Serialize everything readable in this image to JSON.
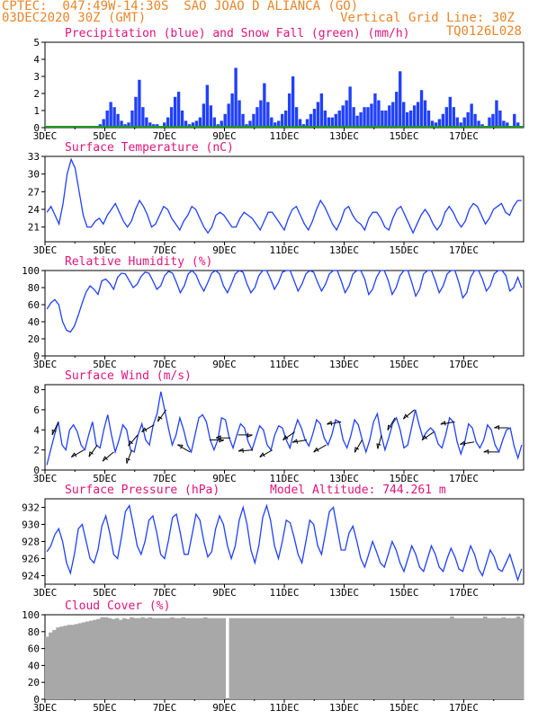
{
  "header": {
    "line1": "CPTEC:  047:49W-14:30S  SAO JOAO D ALIANCA (GO)",
    "line2": "03DEC2020 30Z (GMT)",
    "vertical_grid": "Vertical Grid Line: 30Z",
    "code": "TQ0126L028"
  },
  "colors": {
    "series": "#2040ff",
    "snow": "#1f9a1f",
    "cloud": "#a8a8a8",
    "title": "#e0147a",
    "header": "#e8862a"
  },
  "chart_data": [
    {
      "type": "bar",
      "title": "Precipitation (blue) and Snow Fall (green) (mm/h)",
      "ylim": [
        0,
        5
      ],
      "yticks": [
        0,
        1,
        2,
        3,
        4,
        5
      ],
      "xticks": [
        "3DEC",
        "5DEC",
        "7DEC",
        "9DEC",
        "11DEC",
        "13DEC",
        "15DEC",
        "17DEC"
      ],
      "x_range_days": [
        3,
        19
      ],
      "series": [
        {
          "name": "Precipitation",
          "values": [
            0,
            0,
            0,
            0,
            0,
            0,
            0,
            0,
            0,
            0,
            0,
            0,
            0,
            0,
            0.1,
            0.2,
            0.5,
            1,
            1.5,
            1.2,
            0.8,
            0.4,
            0.2,
            0.3,
            1.0,
            1.8,
            2.8,
            1.2,
            0.6,
            0.3,
            0.2,
            0.2,
            0.1,
            0.3,
            0.6,
            1.2,
            1.8,
            2.1,
            1.0,
            0.4,
            0.2,
            0.3,
            0.4,
            0.6,
            1.4,
            2.5,
            1.3,
            0.6,
            0.2,
            0.4,
            0.8,
            1.4,
            2.0,
            3.5,
            1.6,
            0.8,
            0.2,
            0.4,
            0.8,
            1.2,
            1.6,
            2.6,
            1.5,
            0.6,
            0.3,
            0.4,
            0.8,
            1.0,
            2.0,
            3.0,
            1.2,
            0.5,
            0.2,
            0.5,
            0.8,
            1.1,
            1.5,
            2.0,
            1.0,
            0.6,
            0.6,
            0.8,
            1.0,
            1.3,
            1.6,
            2.4,
            1.2,
            0.7,
            0.9,
            1.2,
            1.2,
            1.4,
            2.0,
            1.6,
            1.0,
            1.0,
            1.3,
            1.5,
            2.1,
            3.3,
            1.5,
            0.9,
            1.0,
            1.3,
            1.5,
            2.2,
            1.6,
            1.0,
            0.4,
            0.3,
            0.5,
            0.8,
            1.2,
            1.8,
            1.2,
            0.6,
            0.3,
            0.6,
            0.9,
            1.4,
            0.8,
            0.4,
            0.2,
            0.1,
            0.6,
            0.8,
            1.6,
            1.0,
            0.4,
            0.3,
            0.1,
            0.8,
            0.3,
            0.1
          ]
        },
        {
          "name": "Snow Fall",
          "values": [
            0,
            0,
            0,
            0,
            0,
            0,
            0,
            0,
            0,
            0
          ]
        }
      ]
    },
    {
      "type": "line",
      "title": "Surface Temperature (nC)",
      "ylim": [
        18.5,
        33
      ],
      "yticks": [
        21,
        24,
        27,
        30,
        33
      ],
      "xticks": [
        "3DEC",
        "5DEC",
        "7DEC",
        "9DEC",
        "11DEC",
        "13DEC",
        "15DEC",
        "17DEC"
      ],
      "x_range_days": [
        3,
        19
      ],
      "series": [
        {
          "name": "Temperature",
          "values": [
            23.5,
            24.5,
            23.0,
            21.5,
            25.0,
            30.0,
            32.5,
            31.0,
            27.0,
            23.0,
            21.0,
            21.0,
            22.0,
            22.5,
            21.5,
            23.0,
            24.0,
            25.0,
            23.5,
            22.0,
            21.0,
            22.0,
            24.0,
            25.5,
            24.5,
            23.0,
            21.0,
            21.5,
            23.0,
            24.5,
            24.0,
            22.5,
            21.5,
            20.5,
            22.0,
            23.0,
            24.5,
            24.0,
            22.5,
            21.0,
            20.0,
            21.0,
            23.0,
            23.5,
            23.0,
            22.0,
            21.0,
            21.0,
            22.5,
            23.5,
            23.0,
            22.5,
            21.5,
            20.5,
            22.0,
            23.5,
            23.5,
            22.5,
            21.5,
            20.5,
            22.5,
            24.0,
            24.5,
            23.0,
            21.5,
            20.5,
            22.0,
            24.0,
            25.5,
            24.5,
            23.0,
            21.5,
            20.5,
            22.0,
            24.0,
            24.5,
            23.0,
            22.0,
            21.5,
            20.5,
            22.5,
            23.5,
            23.5,
            22.5,
            21.0,
            20.5,
            22.5,
            24.0,
            24.5,
            23.0,
            21.5,
            20.0,
            21.5,
            23.0,
            24.0,
            23.0,
            21.5,
            20.5,
            21.5,
            23.5,
            24.5,
            23.5,
            22.0,
            21.0,
            22.0,
            24.0,
            25.0,
            24.5,
            23.0,
            21.5,
            22.5,
            24.0,
            24.5,
            25.0,
            23.5,
            23.0,
            24.5,
            25.5,
            25.5
          ]
        }
      ]
    },
    {
      "type": "line",
      "title": "Relative Humidity (%)",
      "ylim": [
        0,
        100
      ],
      "yticks": [
        0,
        20,
        40,
        60,
        80,
        100
      ],
      "xticks": [
        "3DEC",
        "5DEC",
        "7DEC",
        "9DEC",
        "11DEC",
        "13DEC",
        "15DEC",
        "17DEC"
      ],
      "x_range_days": [
        3,
        19
      ],
      "series": [
        {
          "name": "Relative Humidity",
          "values": [
            55,
            62,
            66,
            60,
            40,
            30,
            28,
            35,
            48,
            62,
            75,
            82,
            78,
            72,
            88,
            90,
            85,
            78,
            92,
            97,
            96,
            88,
            80,
            84,
            93,
            98,
            97,
            88,
            78,
            82,
            94,
            99,
            97,
            86,
            74,
            82,
            96,
            100,
            95,
            84,
            76,
            86,
            97,
            100,
            96,
            82,
            74,
            84,
            96,
            100,
            98,
            84,
            74,
            80,
            94,
            100,
            100,
            90,
            78,
            86,
            98,
            100,
            100,
            88,
            76,
            84,
            96,
            100,
            98,
            86,
            76,
            84,
            96,
            100,
            100,
            88,
            74,
            82,
            96,
            100,
            100,
            90,
            72,
            78,
            92,
            100,
            100,
            88,
            72,
            80,
            94,
            100,
            100,
            86,
            70,
            78,
            96,
            100,
            100,
            88,
            74,
            82,
            96,
            100,
            100,
            86,
            68,
            74,
            92,
            100,
            100,
            90,
            76,
            82,
            96,
            100,
            100,
            94,
            76,
            80,
            92,
            80
          ]
        }
      ]
    },
    {
      "type": "line",
      "title": "Surface Wind (m/s)",
      "ylim": [
        0,
        8.5
      ],
      "yticks": [
        0,
        2,
        4,
        6,
        8
      ],
      "xticks": [
        "3DEC",
        "5DEC",
        "7DEC",
        "9DEC",
        "11DEC",
        "13DEC",
        "15DEC",
        "17DEC"
      ],
      "x_range_days": [
        3,
        19
      ],
      "series": [
        {
          "name": "Wind Speed",
          "values": [
            0.5,
            2.0,
            3.5,
            4.8,
            2.5,
            2.0,
            4.0,
            4.5,
            3.8,
            2.5,
            2.0,
            3.5,
            4.8,
            2.5,
            2.2,
            4.0,
            5.5,
            3.5,
            1.8,
            3.0,
            4.5,
            4.0,
            2.0,
            1.8,
            3.5,
            4.6,
            3.0,
            2.5,
            4.5,
            5.6,
            7.8,
            6.0,
            4.2,
            2.5,
            3.5,
            5.2,
            4.0,
            2.5,
            1.8,
            3.5,
            5.2,
            5.5,
            4.8,
            3.0,
            2.0,
            3.0,
            5.2,
            5.0,
            3.2,
            2.2,
            3.5,
            4.6,
            4.2,
            2.8,
            2.0,
            3.2,
            4.4,
            4.0,
            2.5,
            2.0,
            3.5,
            4.4,
            4.2,
            3.0,
            2.2,
            3.8,
            5.0,
            4.2,
            3.0,
            2.4,
            3.6,
            5.0,
            4.6,
            3.2,
            2.5,
            3.5,
            5.0,
            4.8,
            3.0,
            2.2,
            3.4,
            5.0,
            4.5,
            3.0,
            1.8,
            3.0,
            4.8,
            5.6,
            3.5,
            2.0,
            3.2,
            4.6,
            5.2,
            4.0,
            2.2,
            2.5,
            4.2,
            6.0,
            4.5,
            3.2,
            3.8,
            4.2,
            3.8,
            2.6,
            2.2,
            3.5,
            5.2,
            4.8,
            2.8,
            1.6,
            2.8,
            4.6,
            4.2,
            2.8,
            2.2,
            3.0,
            4.5,
            4.0,
            2.5,
            1.8,
            3.0,
            4.0,
            4.2,
            2.4,
            1.2,
            2.5
          ]
        }
      ],
      "arrows": [
        {
          "day": 3.45,
          "dir": 205
        },
        {
          "day": 4.3,
          "dir": 240
        },
        {
          "day": 4.75,
          "dir": 215
        },
        {
          "day": 5.3,
          "dir": 230
        },
        {
          "day": 5.9,
          "dir": 200
        },
        {
          "day": 6.1,
          "dir": 220
        },
        {
          "day": 6.65,
          "dir": 240
        },
        {
          "day": 7.05,
          "dir": 215
        },
        {
          "day": 7.85,
          "dir": 300
        },
        {
          "day": 8.5,
          "dir": 90
        },
        {
          "day": 9.2,
          "dir": 270
        },
        {
          "day": 9.45,
          "dir": 90
        },
        {
          "day": 9.95,
          "dir": 265
        },
        {
          "day": 10.6,
          "dir": 240
        },
        {
          "day": 11.35,
          "dir": 235
        },
        {
          "day": 11.75,
          "dir": 260
        },
        {
          "day": 12.4,
          "dir": 240
        },
        {
          "day": 12.9,
          "dir": 260
        },
        {
          "day": 13.6,
          "dir": 210
        },
        {
          "day": 14.25,
          "dir": 195
        },
        {
          "day": 14.7,
          "dir": 210
        },
        {
          "day": 15.35,
          "dir": 230
        },
        {
          "day": 16.0,
          "dir": 235
        },
        {
          "day": 16.7,
          "dir": 260
        },
        {
          "day": 17.35,
          "dir": 260
        },
        {
          "day": 18.15,
          "dir": 270
        },
        {
          "day": 18.5,
          "dir": 270
        }
      ]
    },
    {
      "type": "line",
      "title": "Surface Pressure (hPa)",
      "annotation": "Model Altitude: 744.261 m",
      "ylim": [
        923,
        933
      ],
      "yticks": [
        924,
        926,
        928,
        930,
        932
      ],
      "xticks": [
        "3DEC",
        "5DEC",
        "7DEC",
        "9DEC",
        "11DEC",
        "13DEC",
        "15DEC",
        "17DEC"
      ],
      "x_range_days": [
        3,
        19
      ],
      "series": [
        {
          "name": "Pressure",
          "values": [
            926.8,
            927.5,
            928.8,
            929.5,
            928.0,
            925.5,
            924.3,
            926.5,
            929.5,
            930.0,
            928.0,
            926.0,
            925.5,
            927.0,
            929.8,
            931.0,
            929.0,
            926.5,
            926.0,
            928.5,
            931.5,
            932.2,
            930.0,
            927.5,
            926.5,
            928.0,
            930.5,
            931.0,
            929.0,
            926.5,
            926.0,
            928.2,
            930.8,
            931.2,
            929.0,
            926.5,
            926.5,
            928.8,
            931.2,
            930.5,
            928.0,
            926.2,
            926.8,
            929.5,
            931.0,
            930.0,
            927.5,
            926.0,
            927.5,
            930.5,
            932.0,
            930.0,
            927.0,
            925.5,
            927.5,
            930.8,
            932.2,
            930.5,
            927.5,
            926.0,
            928.0,
            930.5,
            930.2,
            928.5,
            926.5,
            925.5,
            928.0,
            930.5,
            930.0,
            927.5,
            926.5,
            929.0,
            931.5,
            932.0,
            929.5,
            927.0,
            927.0,
            929.0,
            929.8,
            928.0,
            926.0,
            925.0,
            926.5,
            928.0,
            926.8,
            925.5,
            925.0,
            926.5,
            928.0,
            927.0,
            925.5,
            924.5,
            926.0,
            927.5,
            926.5,
            925.0,
            924.5,
            926.0,
            927.5,
            926.5,
            925.0,
            924.5,
            926.0,
            927.2,
            926.2,
            924.8,
            924.5,
            926.0,
            927.5,
            926.5,
            924.8,
            924.0,
            925.5,
            927.0,
            926.2,
            924.8,
            924.5,
            925.5,
            926.5,
            925.0,
            923.5,
            924.8
          ]
        }
      ]
    },
    {
      "type": "area",
      "title": "Cloud Cover (%)",
      "ylim": [
        0,
        100
      ],
      "yticks": [
        0,
        20,
        40,
        60,
        80,
        100
      ],
      "xticks": [
        "3DEC",
        "5DEC",
        "7DEC",
        "9DEC",
        "11DEC",
        "13DEC",
        "15DEC",
        "17DEC"
      ],
      "x_range_days": [
        3,
        19
      ],
      "series": [
        {
          "name": "Cloud Cover",
          "values": [
            74,
            79,
            82,
            85,
            86,
            87,
            88,
            88,
            89,
            90,
            91,
            92,
            93,
            94,
            95,
            97,
            97,
            96,
            95,
            96,
            94,
            96,
            95,
            97,
            96,
            96,
            97,
            96,
            97,
            96,
            96,
            96,
            96,
            96,
            97,
            96,
            96,
            97,
            96,
            96,
            96,
            96,
            96,
            97,
            96,
            96,
            96,
            96,
            96,
            0,
            96,
            96,
            96,
            96,
            96,
            96,
            96,
            96,
            96,
            96,
            96,
            96,
            96,
            96,
            96,
            96,
            96,
            96,
            96,
            96,
            96,
            96,
            96,
            96,
            96,
            96,
            96,
            96,
            96,
            96,
            96,
            96,
            96,
            96,
            96,
            96,
            96,
            96,
            96,
            96,
            96,
            96,
            96,
            96,
            96,
            96,
            96,
            96,
            96,
            96,
            96,
            96,
            96,
            96,
            96,
            96,
            96,
            96,
            96,
            96,
            98,
            96,
            96,
            96,
            96,
            96,
            96,
            96,
            96,
            98,
            96,
            96,
            96,
            96,
            97,
            96,
            96,
            96,
            98,
            96
          ]
        }
      ]
    }
  ]
}
